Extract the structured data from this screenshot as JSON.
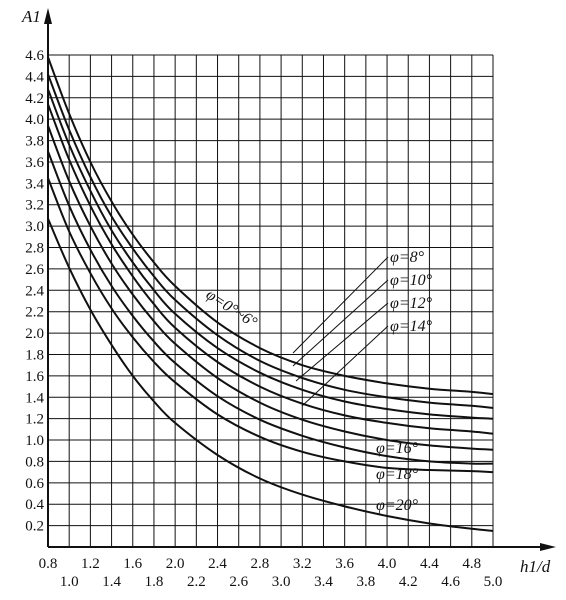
{
  "chart_data": {
    "type": "line",
    "title": "",
    "ylabel": "A1",
    "xlabel": "h1/d",
    "xlim": [
      0.8,
      5.0
    ],
    "ylim": [
      0,
      4.6
    ],
    "grid": true,
    "x_ticks_upper": [
      "0.8",
      "1.2",
      "1.6",
      "2.0",
      "2.4",
      "2.8",
      "3.2",
      "3.6",
      "4.0",
      "4.4",
      "4.8"
    ],
    "x_ticks_lower": [
      "1.0",
      "1.4",
      "1.8",
      "2.2",
      "2.6",
      "3.0",
      "3.4",
      "3.8",
      "4.2",
      "4.6",
      "5.0"
    ],
    "y_ticks": [
      "0.2",
      "0.4",
      "0.6",
      "0.8",
      "1.0",
      "1.2",
      "1.4",
      "1.6",
      "1.8",
      "2.0",
      "2.2",
      "2.4",
      "2.6",
      "2.8",
      "3.0",
      "3.2",
      "3.4",
      "3.6",
      "3.8",
      "4.0",
      "4.2",
      "4.4",
      "4.6"
    ],
    "x": [
      0.8,
      1.0,
      1.2,
      1.4,
      1.6,
      1.8,
      2.0,
      2.4,
      2.8,
      3.2,
      3.6,
      4.0,
      4.4,
      4.8,
      5.0
    ],
    "series": [
      {
        "name": "φ=0°~6°",
        "values": [
          4.58,
          4.05,
          3.6,
          3.23,
          2.92,
          2.66,
          2.44,
          2.1,
          1.86,
          1.7,
          1.6,
          1.53,
          1.48,
          1.45,
          1.43
        ]
      },
      {
        "name": "φ=8°",
        "values": [
          4.42,
          3.9,
          3.46,
          3.09,
          2.79,
          2.53,
          2.31,
          1.98,
          1.74,
          1.58,
          1.47,
          1.4,
          1.35,
          1.32,
          1.3
        ]
      },
      {
        "name": "φ=10°",
        "values": [
          4.28,
          3.76,
          3.33,
          2.96,
          2.66,
          2.4,
          2.18,
          1.86,
          1.63,
          1.47,
          1.36,
          1.29,
          1.24,
          1.21,
          1.2
        ]
      },
      {
        "name": "φ=12°",
        "values": [
          4.14,
          3.62,
          3.19,
          2.83,
          2.53,
          2.27,
          2.05,
          1.73,
          1.5,
          1.34,
          1.23,
          1.16,
          1.11,
          1.08,
          1.06
        ]
      },
      {
        "name": "φ=14°",
        "values": [
          3.94,
          3.42,
          3.0,
          2.65,
          2.36,
          2.11,
          1.9,
          1.58,
          1.35,
          1.19,
          1.08,
          1.0,
          0.95,
          0.92,
          0.91
        ]
      },
      {
        "name": "φ=16°",
        "values": [
          3.7,
          3.19,
          2.78,
          2.44,
          2.16,
          1.92,
          1.72,
          1.41,
          1.19,
          1.04,
          0.93,
          0.85,
          0.8,
          0.78,
          0.78
        ]
      },
      {
        "name": "φ=18°",
        "values": [
          3.45,
          2.95,
          2.56,
          2.23,
          1.96,
          1.73,
          1.54,
          1.24,
          1.03,
          0.89,
          0.8,
          0.74,
          0.72,
          0.71,
          0.7
        ]
      },
      {
        "name": "φ=20°",
        "values": [
          3.07,
          2.61,
          2.22,
          1.89,
          1.6,
          1.36,
          1.16,
          0.86,
          0.64,
          0.49,
          0.38,
          0.29,
          0.22,
          0.17,
          0.15
        ]
      }
    ]
  }
}
